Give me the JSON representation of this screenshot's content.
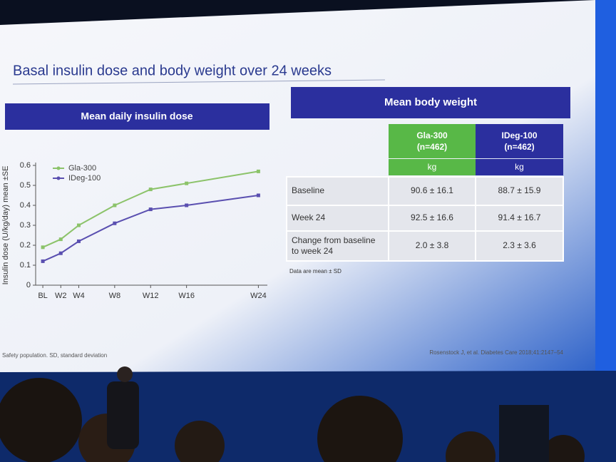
{
  "title": "Basal insulin dose and body weight over 24 weeks",
  "chart_data": {
    "type": "line",
    "title": "Mean daily insulin dose",
    "y_label": "Insulin dose (U/kg/day) mean ±SE",
    "x": [
      0,
      2,
      4,
      8,
      12,
      16,
      24
    ],
    "xlim": [
      -0.8,
      25
    ],
    "xticks": [
      {
        "value": 0,
        "label": "BL"
      },
      {
        "value": 2,
        "label": "W2"
      },
      {
        "value": 4,
        "label": "W4"
      },
      {
        "value": 8,
        "label": "W8"
      },
      {
        "value": 12,
        "label": "W12"
      },
      {
        "value": 16,
        "label": "W16"
      },
      {
        "value": 24,
        "label": "W24"
      }
    ],
    "ylim": [
      0,
      0.6
    ],
    "yticks": [
      0,
      0.1,
      0.2,
      0.3,
      0.4,
      0.5,
      0.6
    ],
    "legend": "upper left",
    "series": [
      {
        "name": "Gla-300",
        "color": "#8cc36a",
        "values": [
          0.19,
          0.23,
          0.3,
          0.4,
          0.48,
          0.51,
          0.57
        ]
      },
      {
        "name": "IDeg-100",
        "color": "#5a4fb0",
        "values": [
          0.12,
          0.16,
          0.22,
          0.31,
          0.38,
          0.4,
          0.45
        ]
      }
    ]
  },
  "table": {
    "title": "Mean body weight",
    "columns": [
      {
        "name": "Gla-300",
        "n": "(n=462)",
        "unit": "kg"
      },
      {
        "name": "IDeg-100",
        "n": "(n=462)",
        "unit": "kg"
      }
    ],
    "rows": [
      [
        "Baseline",
        "90.6 ± 16.1",
        "88.7 ± 15.9"
      ],
      [
        "Week 24",
        "92.5 ± 16.6",
        "91.4 ± 16.7"
      ],
      [
        "Change from baseline",
        "2.0 ± 3.8",
        "2.3 ± 3.6"
      ]
    ],
    "row_label_continuation": "to week 24",
    "note": "Data are mean ± SD"
  },
  "footnote": "Safety population. SD, standard deviation",
  "reference": "Rosenstock J, et al. Diabetes Care 2018;41:2147–54"
}
